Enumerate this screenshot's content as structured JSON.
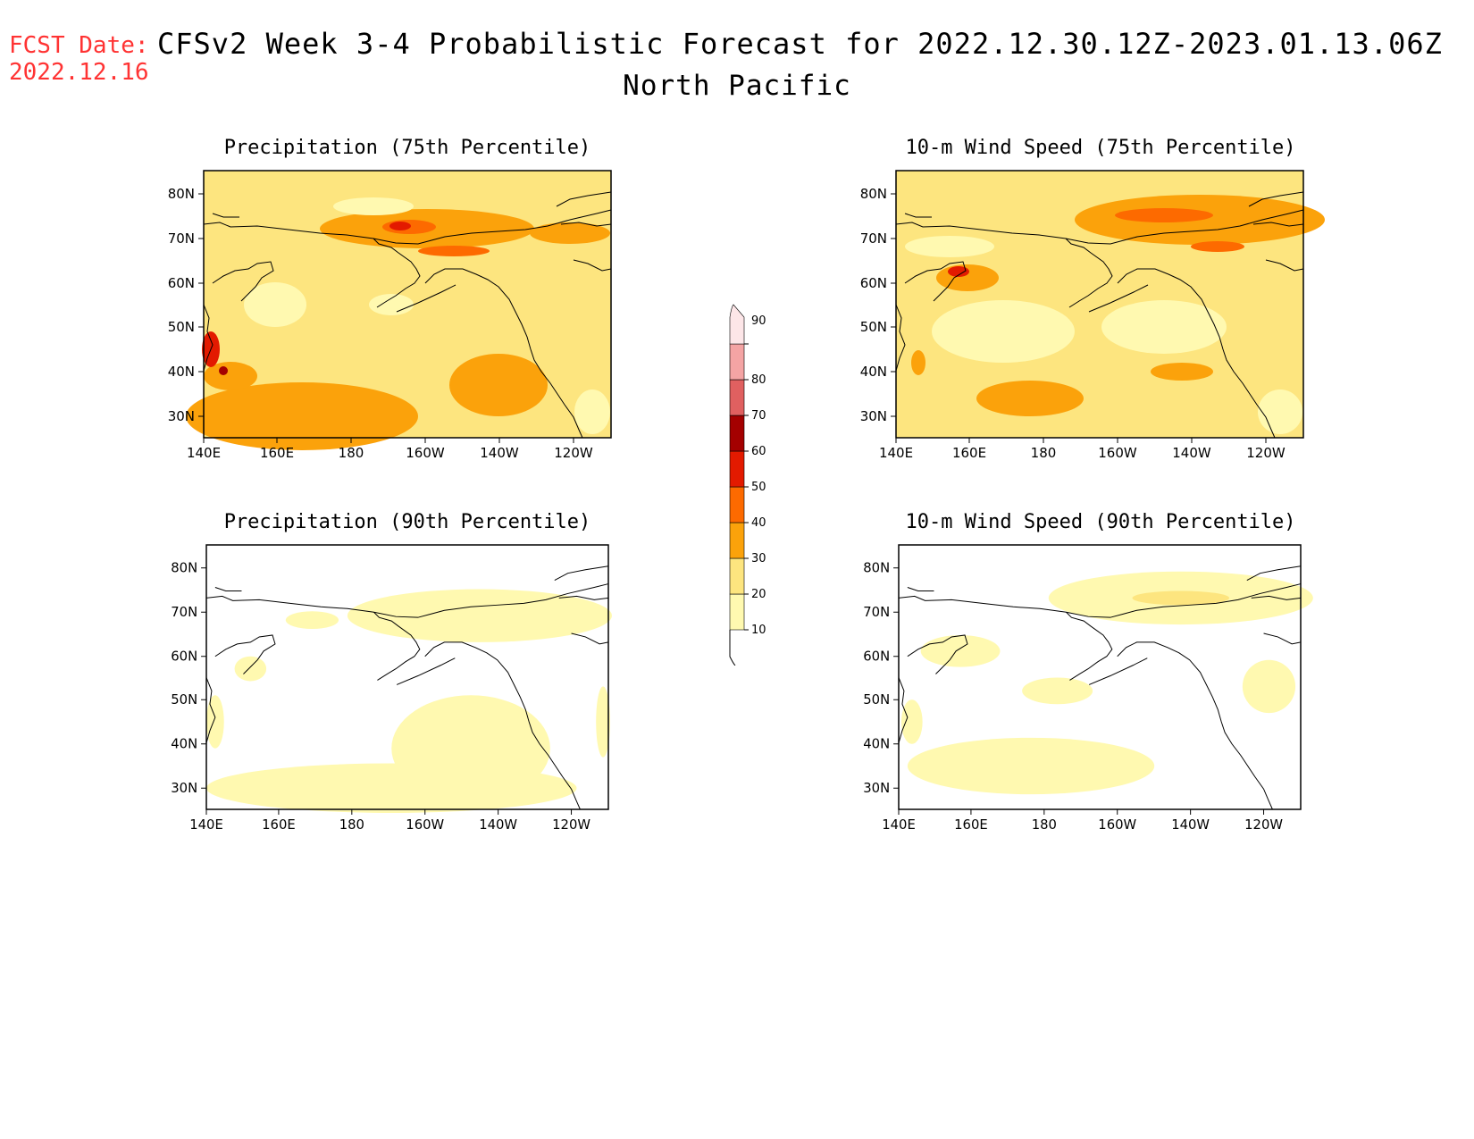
{
  "header": {
    "fcst_label": "FCST Date:",
    "fcst_date": "2022.12.16",
    "title": "CFSv2 Week 3-4 Probabilistic Forecast for 2022.12.30.12Z-2023.01.13.06Z",
    "subtitle": "North Pacific"
  },
  "axes": {
    "lat_labels": [
      "80N",
      "70N",
      "60N",
      "50N",
      "40N",
      "30N"
    ],
    "lon_labels": [
      "140E",
      "160E",
      "180",
      "160W",
      "140W",
      "120W"
    ]
  },
  "panels": [
    {
      "id": "precip-75",
      "title": "Precipitation (75th Percentile)",
      "base_level": 20
    },
    {
      "id": "wind-75",
      "title": "10-m Wind Speed (75th Percentile)",
      "base_level": 20
    },
    {
      "id": "precip-90",
      "title": "Precipitation (90th Percentile)",
      "base_level": 0
    },
    {
      "id": "wind-90",
      "title": "10-m Wind Speed (90th Percentile)",
      "base_level": 0
    }
  ],
  "colorbar": {
    "levels": [
      "10",
      "20",
      "30",
      "40",
      "50",
      "60",
      "70",
      "80",
      "90"
    ],
    "colors": {
      "10": "#fff9b0",
      "20": "#fde57f",
      "30": "#fba20b",
      "40": "#fd6a00",
      "50": "#e31a00",
      "60": "#a40000",
      "70": "#e06060",
      "80": "#f4a4a4",
      "90": "#fde6e8"
    }
  }
}
